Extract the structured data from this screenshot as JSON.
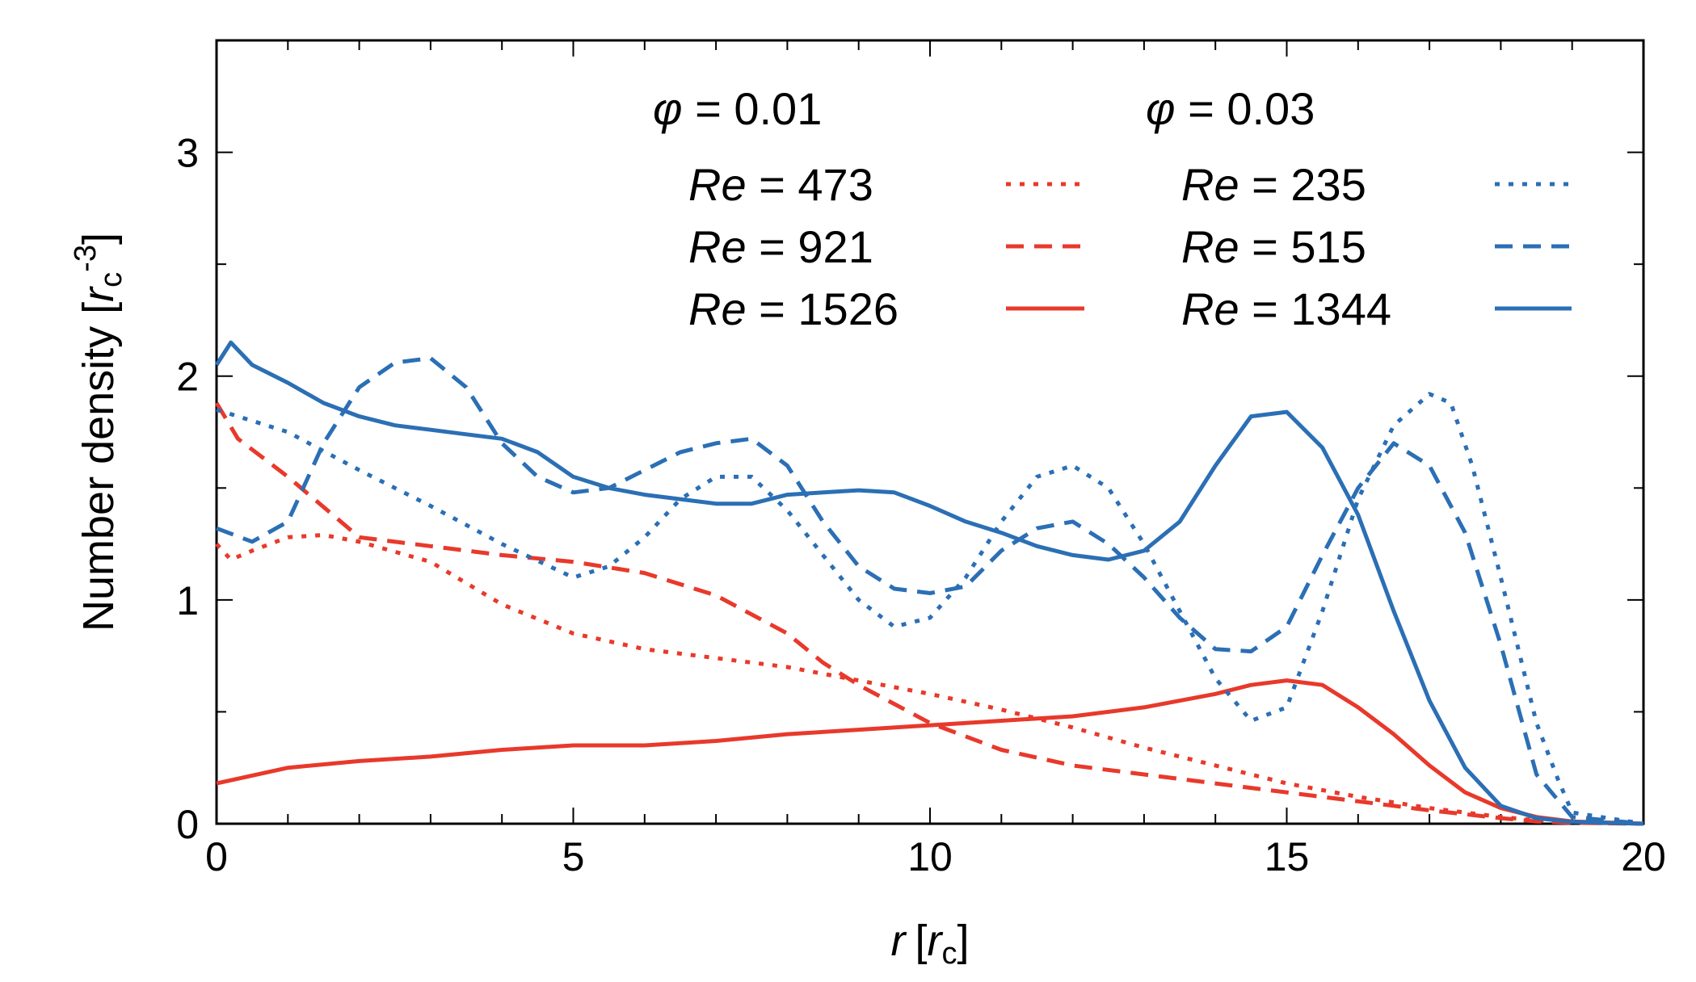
{
  "chart_data": {
    "type": "line",
    "xlabel": {
      "var": "r",
      "unit_open": "[",
      "unit_var": "r",
      "unit_sub": "c",
      "unit_close": "]"
    },
    "ylabel": {
      "text": "Number density [",
      "unit_var": "r",
      "unit_sub": "c",
      "unit_sup": "-3",
      "unit_close": "]"
    },
    "xlim": [
      0,
      20
    ],
    "ylim": [
      0,
      3.5
    ],
    "xticks": [
      0,
      5,
      10,
      15,
      20
    ],
    "xtick_labels": [
      "0",
      "5",
      "10",
      "15",
      "20"
    ],
    "yticks": [
      0,
      1,
      2,
      3
    ],
    "ytick_labels": [
      "0",
      "1",
      "2",
      "3"
    ],
    "grid": false,
    "legend_groups": [
      {
        "phi_symbol": "φ",
        "phi_label": " = 0.01",
        "color": "#e8392b"
      },
      {
        "phi_symbol": "φ",
        "phi_label": " = 0.03",
        "color": "#2b6fb5"
      }
    ],
    "series": [
      {
        "name": "Re",
        "label": " = 473",
        "group": 0,
        "dash": "dotted",
        "color": "#e8392b",
        "x": [
          0,
          0.2,
          0.5,
          1,
          1.5,
          2,
          3,
          4,
          5,
          6,
          7,
          8,
          9,
          10,
          11,
          12,
          13,
          14,
          15,
          16,
          17,
          18,
          18.5,
          19,
          20
        ],
        "y": [
          1.25,
          1.18,
          1.22,
          1.28,
          1.29,
          1.26,
          1.17,
          0.98,
          0.85,
          0.78,
          0.74,
          0.7,
          0.64,
          0.58,
          0.51,
          0.43,
          0.34,
          0.26,
          0.18,
          0.12,
          0.07,
          0.03,
          0.015,
          0.005,
          0
        ]
      },
      {
        "name": "Re",
        "label": " = 921",
        "group": 0,
        "dash": "dashed",
        "color": "#e8392b",
        "x": [
          0,
          0.3,
          1,
          2,
          3,
          4,
          5,
          6,
          7,
          8,
          8.5,
          9,
          10,
          11,
          12,
          13,
          14,
          15,
          16,
          17,
          18,
          18.5,
          19,
          20
        ],
        "y": [
          1.88,
          1.72,
          1.55,
          1.28,
          1.24,
          1.2,
          1.17,
          1.12,
          1.02,
          0.85,
          0.72,
          0.62,
          0.45,
          0.33,
          0.26,
          0.22,
          0.18,
          0.14,
          0.1,
          0.06,
          0.025,
          0.01,
          0.004,
          0
        ]
      },
      {
        "name": "Re",
        "label": " = 1526",
        "group": 0,
        "dash": "solid",
        "color": "#e8392b",
        "x": [
          0,
          1,
          2,
          3,
          4,
          5,
          6,
          7,
          8,
          9,
          10,
          11,
          12,
          13,
          14,
          14.5,
          15,
          15.5,
          16,
          16.5,
          17,
          17.5,
          18,
          18.5,
          19,
          20
        ],
        "y": [
          0.18,
          0.25,
          0.28,
          0.3,
          0.33,
          0.35,
          0.35,
          0.37,
          0.4,
          0.42,
          0.44,
          0.46,
          0.48,
          0.52,
          0.58,
          0.62,
          0.64,
          0.62,
          0.52,
          0.4,
          0.26,
          0.14,
          0.07,
          0.03,
          0.01,
          0
        ]
      },
      {
        "name": "Re",
        "label": " = 235",
        "group": 1,
        "dash": "dotted",
        "color": "#2b6fb5",
        "x": [
          0,
          0.5,
          1,
          2,
          3,
          4,
          5,
          5.5,
          6,
          6.5,
          7,
          7.5,
          8,
          8.5,
          9,
          9.5,
          10,
          10.5,
          11,
          11.5,
          12,
          12.5,
          13,
          13.5,
          14,
          14.5,
          15,
          15.5,
          16,
          16.5,
          17,
          17.3,
          17.6,
          18,
          18.5,
          18.8,
          19,
          20
        ],
        "y": [
          1.85,
          1.8,
          1.75,
          1.58,
          1.42,
          1.25,
          1.1,
          1.15,
          1.28,
          1.45,
          1.55,
          1.55,
          1.4,
          1.2,
          1.0,
          0.88,
          0.92,
          1.1,
          1.35,
          1.55,
          1.6,
          1.5,
          1.25,
          0.95,
          0.65,
          0.46,
          0.52,
          0.95,
          1.45,
          1.78,
          1.92,
          1.88,
          1.6,
          1.1,
          0.45,
          0.2,
          0.05,
          0
        ]
      },
      {
        "name": "Re",
        "label": " = 515",
        "group": 1,
        "dash": "dashed",
        "color": "#2b6fb5",
        "x": [
          0,
          0.5,
          1,
          1.5,
          2,
          2.5,
          3,
          3.5,
          4,
          4.5,
          5,
          5.5,
          6,
          6.5,
          7,
          7.5,
          8,
          8.5,
          9,
          9.5,
          10,
          10.5,
          11,
          11.5,
          12,
          12.5,
          13,
          13.5,
          14,
          14.5,
          15,
          15.5,
          16,
          16.5,
          17,
          17.5,
          18,
          18.5,
          19,
          20
        ],
        "y": [
          1.32,
          1.26,
          1.35,
          1.7,
          1.95,
          2.06,
          2.08,
          1.95,
          1.7,
          1.55,
          1.48,
          1.5,
          1.58,
          1.66,
          1.7,
          1.72,
          1.6,
          1.35,
          1.15,
          1.05,
          1.03,
          1.06,
          1.22,
          1.32,
          1.35,
          1.25,
          1.1,
          0.92,
          0.78,
          0.77,
          0.88,
          1.2,
          1.5,
          1.7,
          1.6,
          1.3,
          0.8,
          0.22,
          0.03,
          0
        ]
      },
      {
        "name": "Re",
        "label": " = 1344",
        "group": 1,
        "dash": "solid",
        "color": "#2b6fb5",
        "x": [
          0,
          0.2,
          0.5,
          1,
          1.5,
          2,
          2.5,
          3,
          3.5,
          4,
          4.5,
          5,
          5.5,
          6,
          6.5,
          7,
          7.5,
          8,
          8.5,
          9,
          9.5,
          10,
          10.5,
          11,
          11.5,
          12,
          12.5,
          13,
          13.5,
          14,
          14.5,
          15,
          15.5,
          16,
          16.5,
          17,
          17.5,
          18,
          18.5,
          19,
          20
        ],
        "y": [
          2.05,
          2.15,
          2.05,
          1.97,
          1.88,
          1.82,
          1.78,
          1.76,
          1.74,
          1.72,
          1.66,
          1.55,
          1.5,
          1.47,
          1.45,
          1.43,
          1.43,
          1.47,
          1.48,
          1.49,
          1.48,
          1.42,
          1.35,
          1.3,
          1.24,
          1.2,
          1.18,
          1.22,
          1.35,
          1.6,
          1.82,
          1.84,
          1.68,
          1.38,
          0.95,
          0.55,
          0.25,
          0.08,
          0.025,
          0.008,
          0
        ]
      }
    ]
  }
}
